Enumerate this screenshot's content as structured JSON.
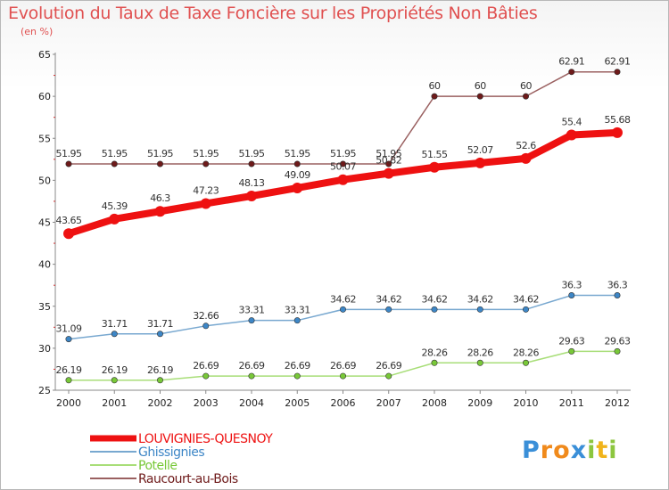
{
  "chart_data": {
    "type": "line",
    "title": "Evolution du Taux de Taxe Foncière sur les Propriétés Non Bâties",
    "subtitle": "(en %)",
    "xlabel": "",
    "ylabel": "",
    "ylim": [
      25,
      65
    ],
    "yticks": [
      25,
      30,
      35,
      40,
      45,
      50,
      55,
      60,
      65
    ],
    "grid": false,
    "legend_position": "bottom-left",
    "x": [
      "2000",
      "2001",
      "2002",
      "2003",
      "2004",
      "2005",
      "2006",
      "2007",
      "2008",
      "2009",
      "2010",
      "2011",
      "2012"
    ],
    "series": [
      {
        "name": "LOUVIGNIES-QUESNOY",
        "color": "#ee1111",
        "marker_color": "#ee1111",
        "width": "thick",
        "values": [
          43.65,
          45.39,
          46.3,
          47.23,
          48.13,
          49.09,
          50.07,
          50.82,
          51.55,
          52.07,
          52.6,
          55.4,
          55.68
        ],
        "labels": [
          "43.65",
          "45.39",
          "46.3",
          "47.23",
          "48.13",
          "49.09",
          "50.07",
          "50.82",
          "51.55",
          "52.07",
          "52.6",
          "55.4",
          "55.68"
        ]
      },
      {
        "name": "Ghissignies",
        "color": "#78a8d0",
        "marker_color": "#3d86c6",
        "width": "thin",
        "values": [
          31.09,
          31.71,
          31.71,
          32.66,
          33.31,
          33.31,
          34.62,
          34.62,
          34.62,
          34.62,
          34.62,
          36.3,
          36.3
        ],
        "labels": [
          "31.09",
          "31.71",
          "31.71",
          "32.66",
          "33.31",
          "33.31",
          "34.62",
          "34.62",
          "34.62",
          "34.62",
          "34.62",
          "36.3",
          "36.3"
        ]
      },
      {
        "name": "Potelle",
        "color": "#a8de78",
        "marker_color": "#78c838",
        "width": "thin",
        "values": [
          26.19,
          26.19,
          26.19,
          26.69,
          26.69,
          26.69,
          26.69,
          26.69,
          28.26,
          28.26,
          28.26,
          29.63,
          29.63
        ],
        "labels": [
          "26.19",
          "26.19",
          "26.19",
          "26.69",
          "26.69",
          "26.69",
          "26.69",
          "26.69",
          "28.26",
          "28.26",
          "28.26",
          "29.63",
          "29.63"
        ]
      },
      {
        "name": "Raucourt-au-Bois",
        "color": "#9a6060",
        "marker_color": "#6e1a1a",
        "width": "thin",
        "values": [
          51.95,
          51.95,
          51.95,
          51.95,
          51.95,
          51.95,
          51.95,
          51.95,
          60,
          60,
          60,
          62.91,
          62.91
        ],
        "labels": [
          "51.95",
          "51.95",
          "51.95",
          "51.95",
          "51.95",
          "51.95",
          "51.95",
          "51.95",
          "60",
          "60",
          "60",
          "62.91",
          "62.91"
        ]
      }
    ]
  },
  "brand": {
    "letters": [
      "P",
      "r",
      "o",
      "x",
      "i",
      "t",
      "i"
    ],
    "colors": [
      "#3a8fd8",
      "#f08a1c",
      "#f08a1c",
      "#3a8fd8",
      "#8cc63f",
      "#f0b41c",
      "#8cc63f"
    ]
  },
  "colors": {
    "title": "#e05050",
    "axis": "#888888"
  }
}
